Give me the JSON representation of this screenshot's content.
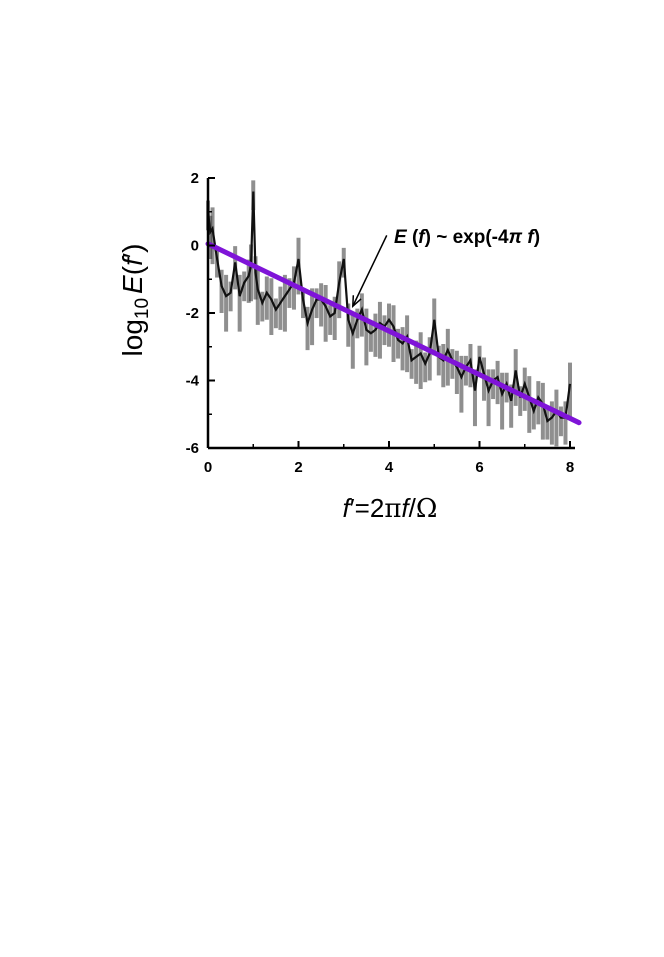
{
  "chart_data": {
    "type": "line",
    "title": "",
    "xlabel": {
      "f": "f",
      "prime": "′",
      "eq": "=2",
      "pi": "π",
      "f2": "f",
      "slash": "/",
      "omega": "Ω"
    },
    "ylabel": {
      "log": "log",
      "sub": "10",
      "E": "E",
      "open": "(",
      "f": "f",
      "prime": "′",
      "close": ")"
    },
    "xlim": [
      0,
      8.2
    ],
    "ylim": [
      -6,
      2
    ],
    "xticks": [
      0,
      2,
      4,
      6,
      8
    ],
    "yticks": [
      2,
      0,
      -2,
      -4,
      -6
    ],
    "x_tick_labels": [
      "0",
      "2",
      "4",
      "6",
      "8"
    ],
    "y_tick_labels": [
      "2",
      "0",
      "-2",
      "-4",
      "-6"
    ],
    "grid": false,
    "annotation": {
      "E": "E",
      "open": " (",
      "f": "f",
      "close": ")",
      "mid": " ~ exp(-4",
      "pi": "π",
      "space": " ",
      "f2": "f",
      "end": ")",
      "arrow_tail": [
        3.95,
        0.3
      ],
      "arrow_head": [
        3.2,
        -1.8
      ]
    },
    "fit_line": {
      "x": [
        0,
        8.2
      ],
      "y": [
        0.05,
        -5.25
      ],
      "color": "#7f14d8"
    },
    "spectrum": {
      "color": "#111111",
      "x": [
        0.0,
        0.05,
        0.1,
        0.2,
        0.3,
        0.4,
        0.5,
        0.6,
        0.7,
        0.8,
        0.9,
        0.95,
        1.0,
        1.05,
        1.1,
        1.2,
        1.3,
        1.4,
        1.5,
        1.6,
        1.7,
        1.8,
        1.9,
        2.0,
        2.1,
        2.2,
        2.3,
        2.4,
        2.5,
        2.6,
        2.7,
        2.8,
        2.9,
        3.0,
        3.1,
        3.2,
        3.3,
        3.4,
        3.5,
        3.6,
        3.7,
        3.8,
        3.9,
        4.0,
        4.1,
        4.2,
        4.3,
        4.4,
        4.5,
        4.6,
        4.7,
        4.8,
        4.9,
        5.0,
        5.1,
        5.2,
        5.3,
        5.4,
        5.5,
        5.6,
        5.7,
        5.8,
        5.9,
        6.0,
        6.1,
        6.2,
        6.3,
        6.4,
        6.5,
        6.6,
        6.7,
        6.8,
        6.9,
        7.0,
        7.1,
        7.2,
        7.3,
        7.4,
        7.5,
        7.6,
        7.7,
        7.8,
        7.9,
        8.0
      ],
      "y": [
        1.0,
        0.4,
        0.5,
        -0.4,
        -1.2,
        -1.5,
        -1.4,
        -0.5,
        -1.5,
        -1.1,
        -0.9,
        -0.6,
        1.6,
        -0.8,
        -1.3,
        -1.7,
        -1.4,
        -1.6,
        -1.9,
        -1.7,
        -1.5,
        -1.3,
        -1.1,
        -0.4,
        -1.6,
        -2.3,
        -1.9,
        -1.6,
        -1.6,
        -1.8,
        -2.1,
        -2.0,
        -1.1,
        -0.4,
        -2.2,
        -2.6,
        -2.2,
        -1.9,
        -2.5,
        -2.6,
        -2.5,
        -2.3,
        -2.4,
        -2.2,
        -2.4,
        -2.8,
        -2.9,
        -2.7,
        -3.4,
        -3.3,
        -3.2,
        -3.5,
        -3.2,
        -2.2,
        -3.3,
        -3.4,
        -3.1,
        -3.4,
        -3.6,
        -3.9,
        -3.6,
        -3.4,
        -4.3,
        -3.3,
        -3.8,
        -4.3,
        -4.0,
        -3.9,
        -4.4,
        -4.1,
        -4.6,
        -3.7,
        -4.5,
        -4.1,
        -4.5,
        -4.9,
        -4.5,
        -4.7,
        -5.2,
        -5.1,
        -4.9,
        -5.1,
        -5.1,
        -4.1
      ]
    }
  }
}
